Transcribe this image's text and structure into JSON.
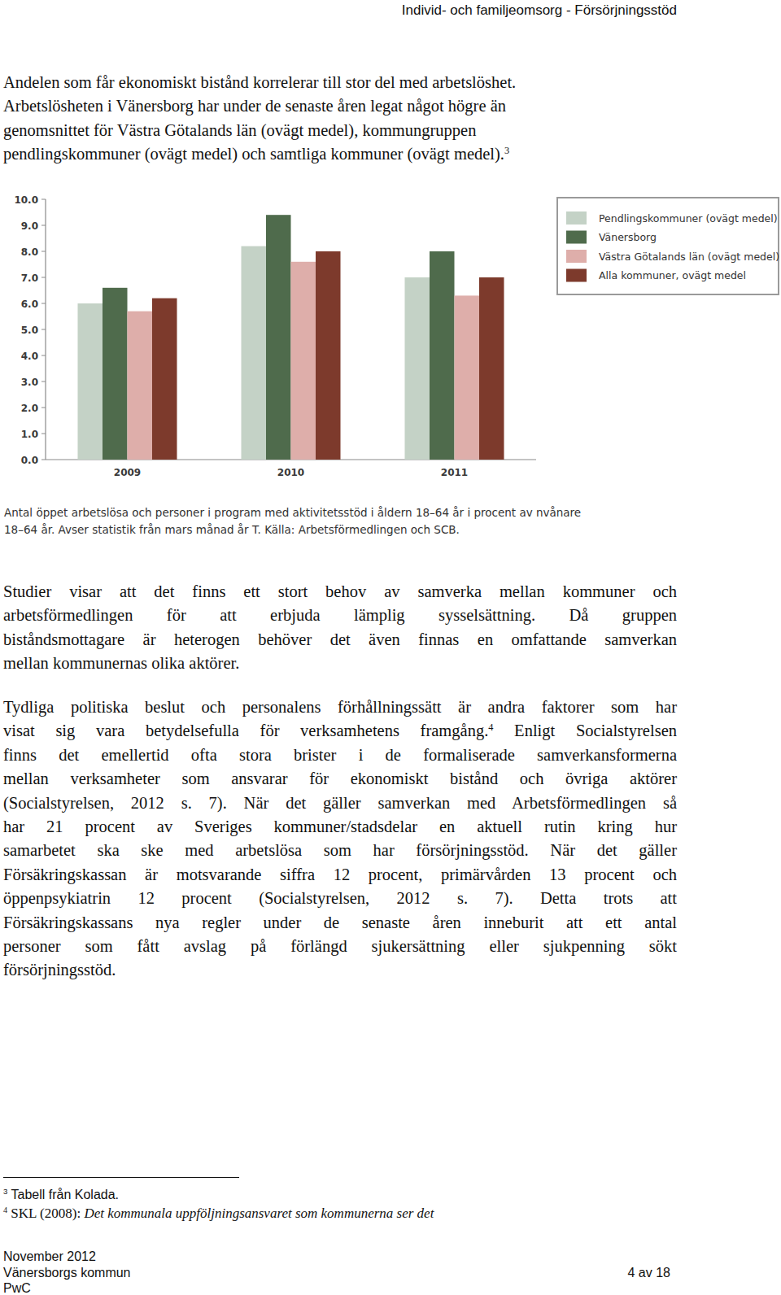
{
  "header": {
    "title": "Individ- och familjeomsorg - Försörjningsstöd"
  },
  "paragraphs": [
    {
      "lines": [
        {
          "text": "Andelen som får ekonomiskt bistånd korrelerar till stor del med arbetslöshet."
        },
        {
          "text": "Arbetslösheten i Vänersborg har under de senaste åren legat något högre än"
        },
        {
          "text": "genomsnittet för Västra Götalands län (ovägt medel), kommungruppen"
        },
        {
          "text": "pendlingskommuner (ovägt medel) och samtliga kommuner (ovägt medel).",
          "sup": "3"
        }
      ]
    },
    {
      "lines": [
        {
          "text": "Studier visar att det finns ett stort behov av samverka mellan kommuner och"
        },
        {
          "text": "arbetsförmedlingen för att erbjuda lämplig sysselsättning. Då gruppen"
        },
        {
          "text": "biståndsmottagare är heterogen behöver det även finnas en omfattande samverkan"
        },
        {
          "text": "mellan kommunernas olika aktörer."
        }
      ]
    },
    {
      "lines": [
        {
          "text": "Tydliga politiska beslut och personalens förhållningssätt är andra faktorer som har"
        },
        {
          "text": "visat sig vara betydelsefulla för verksamhetens framgång.",
          "sup": "4",
          "rest": "Enligt Socialstyrelsen"
        },
        {
          "text": "finns det emellertid ofta stora brister i de formaliserade samverkansformerna"
        },
        {
          "text": "mellan verksamheter som ansvarar för ekonomiskt bistånd och övriga aktörer"
        },
        {
          "text": "(Socialstyrelsen, 2012 s. 7). När det gäller samverkan med Arbetsförmedlingen så"
        },
        {
          "text": "har 21 procent av Sveriges kommuner/stadsdelar en aktuell rutin kring hur"
        },
        {
          "text": "samarbetet ska ske med arbetslösa som har försörjningsstöd. När det gäller"
        },
        {
          "text": "Försäkringskassan är motsvarande siffra 12 procent, primärvården 13 procent och"
        },
        {
          "text": "öppenpsykiatrin 12 procent (Socialstyrelsen, 2012 s. 7). Detta trots att"
        },
        {
          "text": "Försäkringskassans nya regler under de senaste åren inneburit att ett antal"
        },
        {
          "text": "personer som fått avslag på förlängd sjukersättning eller sjukpenning sökt"
        },
        {
          "text": "försörjningsstöd."
        }
      ]
    }
  ],
  "chart_data": {
    "type": "bar",
    "categories": [
      "2009",
      "2010",
      "2011"
    ],
    "series": [
      {
        "name": "Pendlingskommuner (ovägt medel)",
        "color": "#c4d2c6",
        "values": [
          6.0,
          8.2,
          7.0
        ]
      },
      {
        "name": "Vänersborg",
        "color": "#4f6b4c",
        "values": [
          6.6,
          9.4,
          8.0
        ]
      },
      {
        "name": "Västra Götalands län (ovägt medel)",
        "color": "#deaeaa",
        "values": [
          5.7,
          7.6,
          6.3
        ]
      },
      {
        "name": "Alla kommuner, ovägt medel",
        "color": "#7d3a2c",
        "values": [
          6.2,
          8.0,
          7.0
        ]
      }
    ],
    "ylim": [
      0,
      10
    ],
    "yticks": [
      {
        "value": 0,
        "label": "0.0"
      },
      {
        "value": 1,
        "label": "1.0"
      },
      {
        "value": 2,
        "label": "2.0"
      },
      {
        "value": 3,
        "label": "3.0"
      },
      {
        "value": 4,
        "label": "4.0"
      },
      {
        "value": 5,
        "label": "5.0"
      },
      {
        "value": 6,
        "label": "6.0"
      },
      {
        "value": 7,
        "label": "7.0"
      },
      {
        "value": 8,
        "label": "8.0"
      },
      {
        "value": 9,
        "label": "9.0"
      },
      {
        "value": 10,
        "label": "10.0"
      }
    ],
    "grid": false,
    "legend": "right"
  },
  "caption": {
    "lines": [
      "Antal öppet arbetslösa och personer i program med aktivitetsstöd i åldern 18–64 år i procent av nvånare",
      "18–64 år. Avser statistik från mars månad år T. Källa: Arbetsförmedlingen och SCB."
    ]
  },
  "footnotes": [
    {
      "number": "3",
      "text": "Tabell från Kolada."
    },
    {
      "number": "4",
      "text": "SKL (2008):",
      "title": "Det kommunala uppföljningsansvaret som kommunerna ser det"
    }
  ],
  "footer": {
    "date": "November 2012",
    "organization": "Vänersborgs kommun",
    "page": "4 av 18",
    "author": "PwC"
  }
}
